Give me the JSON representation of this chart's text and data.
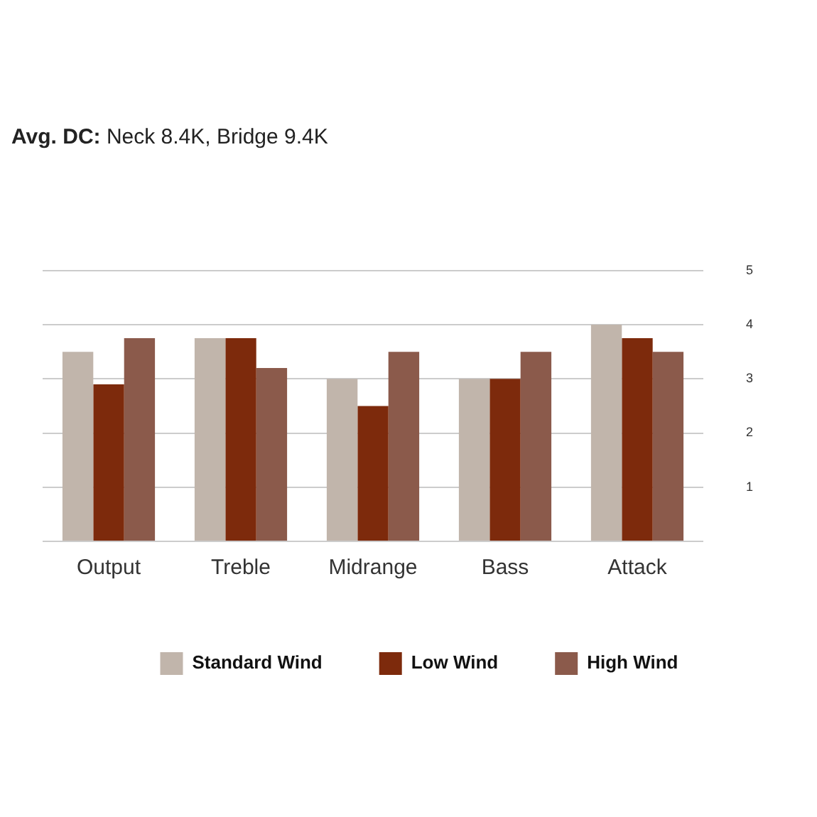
{
  "chart_data": {
    "type": "bar",
    "title": "Avg. DC: Neck 8.4K, Bridge 9.4K",
    "categories": [
      "Output",
      "Treble",
      "Midrange",
      "Bass",
      "Attack"
    ],
    "series": [
      {
        "name": "Standard Wind",
        "color": "#c1b5ab",
        "values": [
          3.5,
          3.75,
          3,
          3,
          4
        ]
      },
      {
        "name": "Low Wind",
        "color": "#7d2a0c",
        "values": [
          2.9,
          3.75,
          2.5,
          3,
          3.75
        ]
      },
      {
        "name": "High Wind",
        "color": "#8b5a4b",
        "values": [
          3.75,
          3.2,
          3.5,
          3.5,
          3.5
        ]
      }
    ],
    "ylim": [
      0,
      5
    ],
    "yticks": [
      {
        "value": 0,
        "label": null
      },
      1,
      2,
      3,
      4,
      5
    ],
    "grid": "y",
    "legend": "bottom"
  }
}
